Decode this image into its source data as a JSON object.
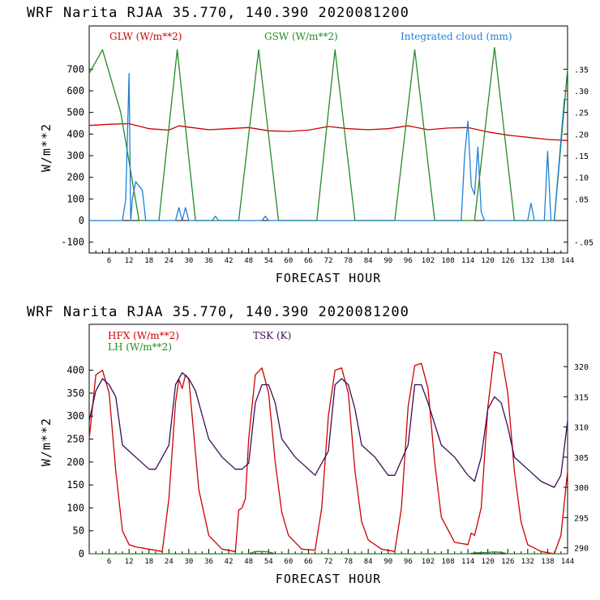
{
  "chart_data": [
    {
      "type": "line",
      "title": "WRF  Narita RJAA   35.770, 140.390  2020081200",
      "xlabel": "FORECAST HOUR",
      "ylabel": "W/m**2",
      "xlim": [
        0,
        144
      ],
      "ylim": [
        -150,
        900
      ],
      "x_ticks": [
        "6",
        "12",
        "18",
        "24",
        "30",
        "36",
        "42",
        "48",
        "54",
        "60",
        "66",
        "72",
        "78",
        "84",
        "90",
        "96",
        "102",
        "108",
        "114",
        "120",
        "126",
        "132",
        "138",
        "144"
      ],
      "y_ticks": [
        "-100",
        "0",
        "100",
        "200",
        "300",
        "400",
        "500",
        "600",
        "700"
      ],
      "y2_ticks": [
        "-.05",
        ".05",
        ".10",
        ".15",
        ".20",
        ".25",
        ".30",
        ".35"
      ],
      "y2lim": [
        -0.075,
        0.45
      ],
      "legend": [
        {
          "name": "GLW (W/m**2)",
          "color": "#cc0000"
        },
        {
          "name": "GSW (W/m**2)",
          "color": "#228b22"
        },
        {
          "name": "Integrated cloud (mm)",
          "color": "#1e7fd6"
        }
      ],
      "series": [
        {
          "name": "GLW (W/m**2)",
          "axis": "left",
          "color": "#cc0000",
          "x": [
            0,
            6,
            12,
            18,
            24,
            27,
            30,
            36,
            42,
            48,
            54,
            60,
            66,
            72,
            78,
            84,
            90,
            96,
            102,
            108,
            114,
            120,
            126,
            132,
            138,
            144
          ],
          "y": [
            440,
            445,
            448,
            425,
            418,
            438,
            432,
            420,
            425,
            430,
            415,
            412,
            418,
            435,
            425,
            420,
            425,
            438,
            420,
            428,
            430,
            410,
            395,
            385,
            375,
            370
          ]
        },
        {
          "name": "GSW (W/m**2)",
          "axis": "left",
          "color": "#228b22",
          "x": [
            -1,
            4,
            9.5,
            15,
            21,
            26.5,
            32,
            39,
            45,
            51,
            57,
            63,
            68.5,
            74,
            80,
            86,
            92,
            98,
            104,
            110,
            116,
            122,
            128,
            134,
            140,
            145
          ],
          "y": [
            680,
            790,
            500,
            0,
            0,
            790,
            0,
            0,
            0,
            790,
            0,
            0,
            0,
            790,
            0,
            0,
            0,
            790,
            0,
            0,
            0,
            800,
            0,
            0,
            0,
            700
          ]
        },
        {
          "name": "Integrated cloud (mm)",
          "axis": "right",
          "color": "#1e7fd6",
          "x": [
            0,
            10,
            11,
            12,
            12.5,
            13,
            14,
            15,
            16,
            17,
            18,
            26,
            27,
            28,
            29,
            30,
            31,
            37,
            38,
            39,
            52,
            53,
            54,
            112,
            113,
            114,
            115,
            116,
            117,
            118,
            119,
            132,
            133,
            134,
            137,
            138,
            139,
            140,
            143,
            144
          ],
          "y": [
            0,
            0,
            0.05,
            0.34,
            0,
            0.05,
            0.09,
            0.08,
            0.07,
            0,
            0,
            0,
            0.03,
            0,
            0.03,
            0,
            0,
            0,
            0.01,
            0,
            0,
            0.01,
            0,
            0,
            0.15,
            0.23,
            0.08,
            0.06,
            0.17,
            0.02,
            0,
            0,
            0.04,
            0,
            0,
            0.16,
            0,
            0,
            0.28,
            0.28
          ]
        }
      ]
    },
    {
      "type": "line",
      "title": "WRF  Narita RJAA   35.770, 140.390  2020081200",
      "xlabel": "FORECAST HOUR",
      "ylabel": "W/m**2",
      "xlim": [
        0,
        144
      ],
      "ylim": [
        0,
        500
      ],
      "x_ticks": [
        "6",
        "12",
        "18",
        "24",
        "30",
        "36",
        "42",
        "48",
        "54",
        "60",
        "66",
        "72",
        "78",
        "84",
        "90",
        "96",
        "102",
        "108",
        "114",
        "120",
        "126",
        "132",
        "138",
        "144"
      ],
      "y_ticks": [
        "0",
        "50",
        "100",
        "150",
        "200",
        "250",
        "300",
        "350",
        "400"
      ],
      "y2_ticks": [
        "290",
        "295",
        "300",
        "305",
        "310",
        "315",
        "320"
      ],
      "y2lim": [
        289,
        327
      ],
      "legend": [
        {
          "name": "HFX (W/m**2)",
          "color": "#cc0000"
        },
        {
          "name": "LH  (W/m**2)",
          "color": "#228b22"
        },
        {
          "name": "TSK (K)",
          "color": "#3b0b5a"
        }
      ],
      "series": [
        {
          "name": "HFX (W/m**2)",
          "axis": "left",
          "color": "#cc0000",
          "x": [
            0,
            2,
            4,
            6,
            8,
            10,
            12,
            14,
            18,
            22,
            24,
            26,
            27,
            28,
            29,
            30,
            31,
            33,
            36,
            40,
            44,
            45,
            46,
            47,
            48,
            50,
            52,
            54,
            56,
            58,
            60,
            64,
            68,
            70,
            72,
            74,
            76,
            78,
            80,
            82,
            84,
            88,
            92,
            94,
            96,
            98,
            100,
            102,
            104,
            106,
            110,
            114,
            115,
            116,
            118,
            120,
            122,
            124,
            126,
            128,
            130,
            132,
            136,
            140,
            142,
            144
          ],
          "y": [
            250,
            390,
            400,
            350,
            180,
            50,
            20,
            15,
            10,
            5,
            120,
            330,
            380,
            360,
            390,
            380,
            300,
            140,
            40,
            10,
            5,
            95,
            100,
            120,
            250,
            390,
            405,
            350,
            200,
            90,
            40,
            10,
            8,
            100,
            300,
            400,
            405,
            350,
            180,
            70,
            30,
            10,
            5,
            100,
            320,
            410,
            415,
            360,
            200,
            80,
            25,
            20,
            45,
            40,
            100,
            320,
            440,
            435,
            350,
            180,
            70,
            20,
            5,
            0,
            40,
            180
          ]
        },
        {
          "name": "LH  (W/m**2)",
          "axis": "left",
          "color": "#228b22",
          "x": [
            0,
            48,
            50,
            52,
            54,
            56,
            114,
            116,
            120,
            122,
            124,
            126,
            144
          ],
          "y": [
            0,
            0,
            5,
            5,
            4,
            0,
            0,
            2,
            3,
            4,
            3,
            0,
            0
          ]
        },
        {
          "name": "TSK (K)",
          "axis": "right",
          "color": "#3b0b5a",
          "x": [
            0,
            2,
            4,
            6,
            8,
            10,
            14,
            18,
            20,
            24,
            26,
            28,
            30,
            32,
            36,
            40,
            44,
            46,
            48,
            50,
            52,
            54,
            56,
            58,
            62,
            66,
            68,
            72,
            74,
            76,
            78,
            80,
            82,
            86,
            90,
            92,
            96,
            98,
            100,
            102,
            106,
            110,
            114,
            116,
            118,
            120,
            122,
            124,
            126,
            128,
            132,
            136,
            140,
            142,
            144
          ],
          "y": [
            311,
            316,
            318,
            317,
            315,
            307,
            305,
            303,
            303,
            307,
            317,
            319,
            318,
            316,
            308,
            305,
            303,
            303,
            304,
            314,
            317,
            317,
            314,
            308,
            305,
            303,
            302,
            306,
            317,
            318,
            317,
            313,
            307,
            305,
            302,
            302,
            307,
            317,
            317,
            314,
            307,
            305,
            302,
            301,
            305,
            313,
            315,
            314,
            310,
            305,
            303,
            301,
            300,
            302,
            311
          ]
        }
      ]
    }
  ]
}
